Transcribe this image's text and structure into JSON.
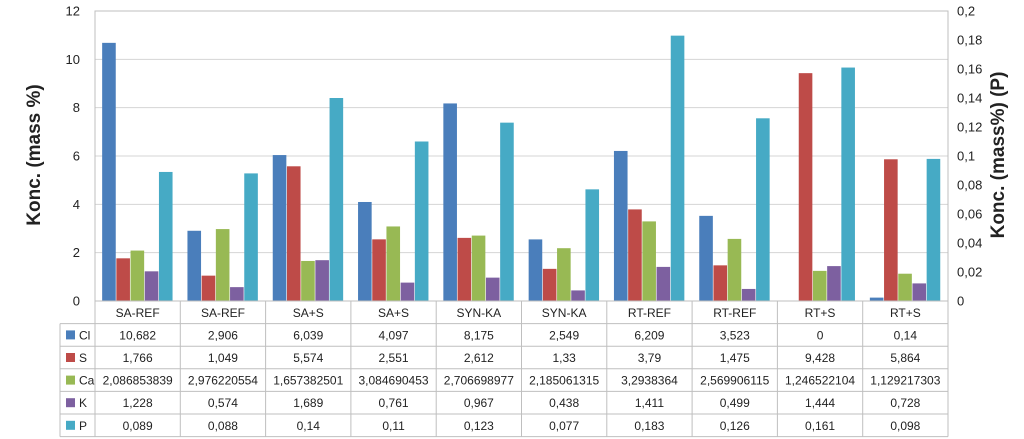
{
  "chart_data": {
    "type": "bar",
    "categories": [
      "SA-REF",
      "SA-REF",
      "SA+S",
      "SA+S",
      "SYN-KA",
      "SYN-KA",
      "RT-REF",
      "RT-REF",
      "RT+S",
      "RT+S"
    ],
    "ylabel": "Konc. (mass %)",
    "y2label": "Konc. (mass%) (P)",
    "ylim": [
      0,
      12
    ],
    "y2lim": [
      0,
      0.2
    ],
    "y_ticks": [
      "0",
      "2",
      "4",
      "6",
      "8",
      "10",
      "12"
    ],
    "y2_ticks": [
      "0",
      "0,02",
      "0,04",
      "0,06",
      "0,08",
      "0,1",
      "0,12",
      "0,14",
      "0,16",
      "0,18",
      "0,2"
    ],
    "grid": "horizontal",
    "legend": "data-table",
    "series": [
      {
        "name": "Cl",
        "color": "#4a7ebb",
        "axis": "left",
        "values": [
          10.682,
          2.906,
          6.039,
          4.097,
          8.175,
          2.549,
          6.209,
          3.523,
          0,
          0.14
        ],
        "labels": [
          "10,682",
          "2,906",
          "6,039",
          "4,097",
          "8,175",
          "2,549",
          "6,209",
          "3,523",
          "0",
          "0,14"
        ]
      },
      {
        "name": "S",
        "color": "#be4b48",
        "axis": "left",
        "values": [
          1.766,
          1.049,
          5.574,
          2.551,
          2.612,
          1.33,
          3.79,
          1.475,
          9.428,
          5.864
        ],
        "labels": [
          "1,766",
          "1,049",
          "5,574",
          "2,551",
          "2,612",
          "1,33",
          "3,79",
          "1,475",
          "9,428",
          "5,864"
        ]
      },
      {
        "name": "Ca",
        "color": "#98b954",
        "axis": "left",
        "values": [
          2.086853839,
          2.976220554,
          1.657382501,
          3.084690453,
          2.706698977,
          2.185061315,
          3.2938364,
          2.569906115,
          1.246522104,
          1.129217303
        ],
        "labels": [
          "2,086853839",
          "2,976220554",
          "1,657382501",
          "3,084690453",
          "2,706698977",
          "2,185061315",
          "3,2938364",
          "2,569906115",
          "1,246522104",
          "1,129217303"
        ]
      },
      {
        "name": "K",
        "color": "#7d60a0",
        "axis": "left",
        "values": [
          1.228,
          0.574,
          1.689,
          0.761,
          0.967,
          0.438,
          1.411,
          0.499,
          1.444,
          0.728
        ],
        "labels": [
          "1,228",
          "0,574",
          "1,689",
          "0,761",
          "0,967",
          "0,438",
          "1,411",
          "0,499",
          "1,444",
          "0,728"
        ]
      },
      {
        "name": "P",
        "color": "#46aac5",
        "axis": "right",
        "values": [
          0.089,
          0.088,
          0.14,
          0.11,
          0.123,
          0.077,
          0.183,
          0.126,
          0.161,
          0.098
        ],
        "labels": [
          "0,089",
          "0,088",
          "0,14",
          "0,11",
          "0,123",
          "0,077",
          "0,183",
          "0,126",
          "0,161",
          "0,098"
        ]
      }
    ]
  }
}
